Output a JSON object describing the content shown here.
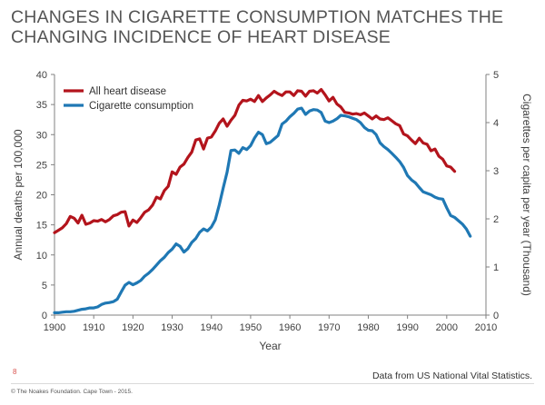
{
  "title_lines": [
    "CHANGES IN CIGARETTE CONSUMPTION MATCHES THE",
    "CHANGING INCIDENCE OF HEART DISEASE"
  ],
  "source": "Data from US National Vital Statistics.",
  "page_number": "8",
  "footer": "© The Noakes Foundation. Cape Town - 2015.",
  "colors": {
    "heart": "#b3141c",
    "cigarette": "#1f78b4",
    "axis": "#808080",
    "text": "#404040"
  },
  "chart_data": {
    "type": "line",
    "xlabel": "Year",
    "ylabel": "Annual deaths per 100,000",
    "y2label": "Cigarettes per capita per year (Thousand)",
    "xlim": [
      1900,
      2010
    ],
    "ylim": [
      0,
      40
    ],
    "y2lim": [
      0,
      5
    ],
    "xticks": [
      1900,
      1910,
      1920,
      1930,
      1940,
      1950,
      1960,
      1970,
      1980,
      1990,
      2000,
      2010
    ],
    "yticks": [
      0,
      5,
      10,
      15,
      20,
      25,
      30,
      35,
      40
    ],
    "y2ticks": [
      0,
      1,
      2,
      3,
      4,
      5
    ],
    "grid": false,
    "legend": "top-left",
    "series": [
      {
        "name": "All heart disease",
        "axis": "left",
        "x": [
          1900,
          1901,
          1902,
          1903,
          1904,
          1905,
          1906,
          1907,
          1908,
          1909,
          1910,
          1911,
          1912,
          1913,
          1914,
          1915,
          1916,
          1917,
          1918,
          1919,
          1920,
          1921,
          1922,
          1923,
          1924,
          1925,
          1926,
          1927,
          1928,
          1929,
          1930,
          1931,
          1932,
          1933,
          1934,
          1935,
          1936,
          1937,
          1938,
          1939,
          1940,
          1941,
          1942,
          1943,
          1944,
          1945,
          1946,
          1947,
          1948,
          1949,
          1950,
          1951,
          1952,
          1953,
          1954,
          1955,
          1956,
          1957,
          1958,
          1959,
          1960,
          1961,
          1962,
          1963,
          1964,
          1965,
          1966,
          1967,
          1968,
          1969,
          1970,
          1971,
          1972,
          1973,
          1974,
          1975,
          1976,
          1977,
          1978,
          1979,
          1980,
          1981,
          1982,
          1983,
          1984,
          1985,
          1986,
          1987,
          1988,
          1989,
          1990,
          1991,
          1992,
          1993,
          1994,
          1995,
          1996,
          1997,
          1998,
          1999,
          2000,
          2001,
          2002
        ],
        "y": [
          13.7,
          14.1,
          14.5,
          15.2,
          16.4,
          16.1,
          15.3,
          16.6,
          15.1,
          15.3,
          15.7,
          15.6,
          15.9,
          15.5,
          15.9,
          16.5,
          16.7,
          17.1,
          17.2,
          14.8,
          15.8,
          15.4,
          16.2,
          17.1,
          17.5,
          18.3,
          19.6,
          19.3,
          20.7,
          21.4,
          23.8,
          23.4,
          24.6,
          25.1,
          26.2,
          27.1,
          29.1,
          29.3,
          27.6,
          29.4,
          29.6,
          30.6,
          31.9,
          32.6,
          31.4,
          32.4,
          33.2,
          34.9,
          35.7,
          35.6,
          35.9,
          35.5,
          36.5,
          35.5,
          36.1,
          36.6,
          37.2,
          36.8,
          36.5,
          37.1,
          37.1,
          36.5,
          37.3,
          37.2,
          36.4,
          37.2,
          37.3,
          36.9,
          37.5,
          36.6,
          35.6,
          36.2,
          35.1,
          34.6,
          33.7,
          33.6,
          33.4,
          33.5,
          33.3,
          33.6,
          33.1,
          32.6,
          33.1,
          32.6,
          32.5,
          32.8,
          32.3,
          31.8,
          31.5,
          30.1,
          29.8,
          29.1,
          28.5,
          29.4,
          28.6,
          28.4,
          27.3,
          27.6,
          26.4,
          25.9,
          24.8,
          24.6,
          23.9
        ]
      },
      {
        "name": "Cigarette consumption",
        "axis": "right",
        "x": [
          1900,
          1901,
          1902,
          1903,
          1904,
          1905,
          1906,
          1907,
          1908,
          1909,
          1910,
          1911,
          1912,
          1913,
          1914,
          1915,
          1916,
          1917,
          1918,
          1919,
          1920,
          1921,
          1922,
          1923,
          1924,
          1925,
          1926,
          1927,
          1928,
          1929,
          1930,
          1931,
          1932,
          1933,
          1934,
          1935,
          1936,
          1937,
          1938,
          1939,
          1940,
          1941,
          1942,
          1943,
          1944,
          1945,
          1946,
          1947,
          1948,
          1949,
          1950,
          1951,
          1952,
          1953,
          1954,
          1955,
          1956,
          1957,
          1958,
          1959,
          1960,
          1961,
          1962,
          1963,
          1964,
          1965,
          1966,
          1967,
          1968,
          1969,
          1970,
          1971,
          1972,
          1973,
          1974,
          1975,
          1976,
          1977,
          1978,
          1979,
          1980,
          1981,
          1982,
          1983,
          1984,
          1985,
          1986,
          1987,
          1988,
          1989,
          1990,
          1991,
          1992,
          1993,
          1994,
          1995,
          1996,
          1997,
          1998,
          1999,
          2000,
          2001,
          2002,
          2003,
          2004,
          2005,
          2006
        ],
        "y": [
          0.05,
          0.05,
          0.06,
          0.07,
          0.07,
          0.08,
          0.1,
          0.12,
          0.13,
          0.15,
          0.15,
          0.17,
          0.22,
          0.25,
          0.26,
          0.28,
          0.33,
          0.48,
          0.62,
          0.68,
          0.63,
          0.67,
          0.72,
          0.81,
          0.87,
          0.95,
          1.04,
          1.13,
          1.2,
          1.3,
          1.37,
          1.48,
          1.43,
          1.31,
          1.38,
          1.51,
          1.59,
          1.72,
          1.79,
          1.75,
          1.83,
          1.98,
          2.29,
          2.64,
          2.97,
          3.42,
          3.43,
          3.36,
          3.48,
          3.44,
          3.52,
          3.68,
          3.8,
          3.75,
          3.56,
          3.59,
          3.66,
          3.73,
          3.97,
          4.03,
          4.12,
          4.19,
          4.28,
          4.3,
          4.17,
          4.24,
          4.27,
          4.26,
          4.21,
          4.03,
          4.0,
          4.03,
          4.08,
          4.15,
          4.14,
          4.12,
          4.09,
          4.06,
          4.0,
          3.9,
          3.84,
          3.83,
          3.75,
          3.58,
          3.5,
          3.44,
          3.36,
          3.28,
          3.19,
          3.07,
          2.9,
          2.81,
          2.75,
          2.65,
          2.56,
          2.53,
          2.5,
          2.45,
          2.42,
          2.41,
          2.23,
          2.07,
          2.03,
          1.96,
          1.89,
          1.79,
          1.64
        ]
      }
    ]
  }
}
